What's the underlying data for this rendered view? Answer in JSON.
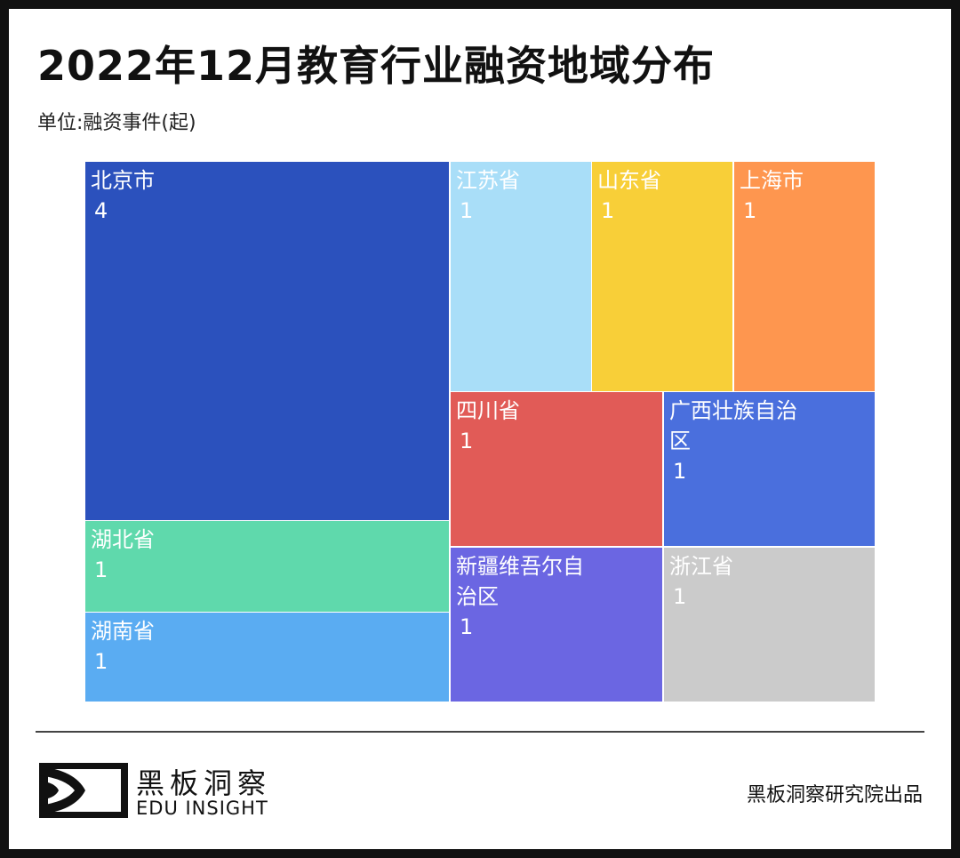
{
  "title": "2022年12月教育行业融资地域分布",
  "unit": "单位:融资事件(起)",
  "chart_data": {
    "type": "treemap",
    "title": "2022年12月教育行业融资地域分布",
    "unit": "单位:融资事件(起)",
    "items": [
      {
        "name": "北京市",
        "value": 4,
        "color": "#2b51bd"
      },
      {
        "name": "湖北省",
        "value": 1,
        "color": "#5fd9ac"
      },
      {
        "name": "湖南省",
        "value": 1,
        "color": "#5aacf2"
      },
      {
        "name": "江苏省",
        "value": 1,
        "color": "#a9def8"
      },
      {
        "name": "山东省",
        "value": 1,
        "color": "#f8cf38"
      },
      {
        "name": "上海市",
        "value": 1,
        "color": "#fe964f"
      },
      {
        "name": "四川省",
        "value": 1,
        "color": "#e15b57"
      },
      {
        "name": "广西壮族自治区",
        "value": 1,
        "color": "#4a6fdd"
      },
      {
        "name": "新疆维吾尔自治区",
        "value": 1,
        "color": "#6b66e2"
      },
      {
        "name": "浙江省",
        "value": 1,
        "color": "#cbcbcb"
      }
    ]
  },
  "footer": {
    "brand_cn": "黑板洞察",
    "brand_en": "EDU INSIGHT",
    "credit": "黑板洞察研究院出品"
  }
}
